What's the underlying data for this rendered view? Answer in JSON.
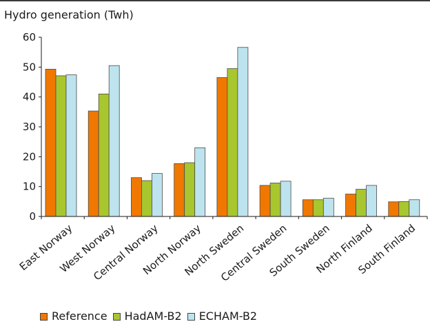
{
  "chart_data": {
    "type": "bar",
    "title": "",
    "ylabel": "Hydro generation (Twh)",
    "xlabel": "",
    "ylim": [
      0,
      60
    ],
    "yticks": [
      0,
      10,
      20,
      30,
      40,
      50,
      60
    ],
    "grid": false,
    "legend_position": "bottom",
    "categories": [
      "East Norway",
      "West Norway",
      "Central Norway",
      "North Norway",
      "North Sweden",
      "Central Sweden",
      "South Sweden",
      "North Finland",
      "South Finland"
    ],
    "series": [
      {
        "name": "Reference",
        "color": "#F07800",
        "values": [
          49.3,
          35.3,
          13.0,
          17.7,
          46.5,
          10.4,
          5.6,
          7.5,
          4.9
        ]
      },
      {
        "name": "HadAM-B2",
        "color": "#A8C62E",
        "values": [
          47.1,
          41.0,
          12.0,
          18.0,
          49.5,
          11.2,
          5.6,
          9.1,
          5.0
        ]
      },
      {
        "name": "ECHAM-B2",
        "color": "#BDE3EE",
        "values": [
          47.4,
          50.5,
          14.4,
          23.0,
          56.6,
          11.8,
          6.1,
          10.4,
          5.6
        ]
      }
    ]
  }
}
